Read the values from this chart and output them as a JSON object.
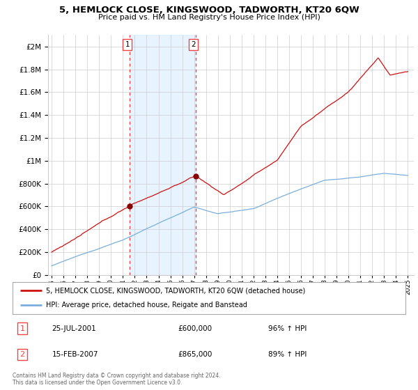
{
  "title": "5, HEMLOCK CLOSE, KINGSWOOD, TADWORTH, KT20 6QW",
  "subtitle": "Price paid vs. HM Land Registry's House Price Index (HPI)",
  "legend_line1": "5, HEMLOCK CLOSE, KINGSWOOD, TADWORTH, KT20 6QW (detached house)",
  "legend_line2": "HPI: Average price, detached house, Reigate and Banstead",
  "footer": "Contains HM Land Registry data © Crown copyright and database right 2024.\nThis data is licensed under the Open Government Licence v3.0.",
  "sale1_date": "25-JUL-2001",
  "sale1_price": "£600,000",
  "sale1_hpi": "96% ↑ HPI",
  "sale1_x": 2001.57,
  "sale1_y": 600000,
  "sale2_date": "15-FEB-2007",
  "sale2_price": "£865,000",
  "sale2_hpi": "89% ↑ HPI",
  "sale2_x": 2007.12,
  "sale2_y": 865000,
  "hpi_color": "#7aaedc",
  "price_color": "#cc1111",
  "marker_color": "#880000",
  "vline_color": "#ee4444",
  "shade_color": "#ddeeff",
  "ylim": [
    0,
    2100000
  ],
  "yticks": [
    0,
    200000,
    400000,
    600000,
    800000,
    1000000,
    1200000,
    1400000,
    1600000,
    1800000,
    2000000
  ],
  "xlim_start": 1994.7,
  "xlim_end": 2025.5,
  "xticks": [
    1995,
    1996,
    1997,
    1998,
    1999,
    2000,
    2001,
    2002,
    2003,
    2004,
    2005,
    2006,
    2007,
    2008,
    2009,
    2010,
    2011,
    2012,
    2013,
    2014,
    2015,
    2016,
    2017,
    2018,
    2019,
    2020,
    2021,
    2022,
    2023,
    2024,
    2025
  ]
}
